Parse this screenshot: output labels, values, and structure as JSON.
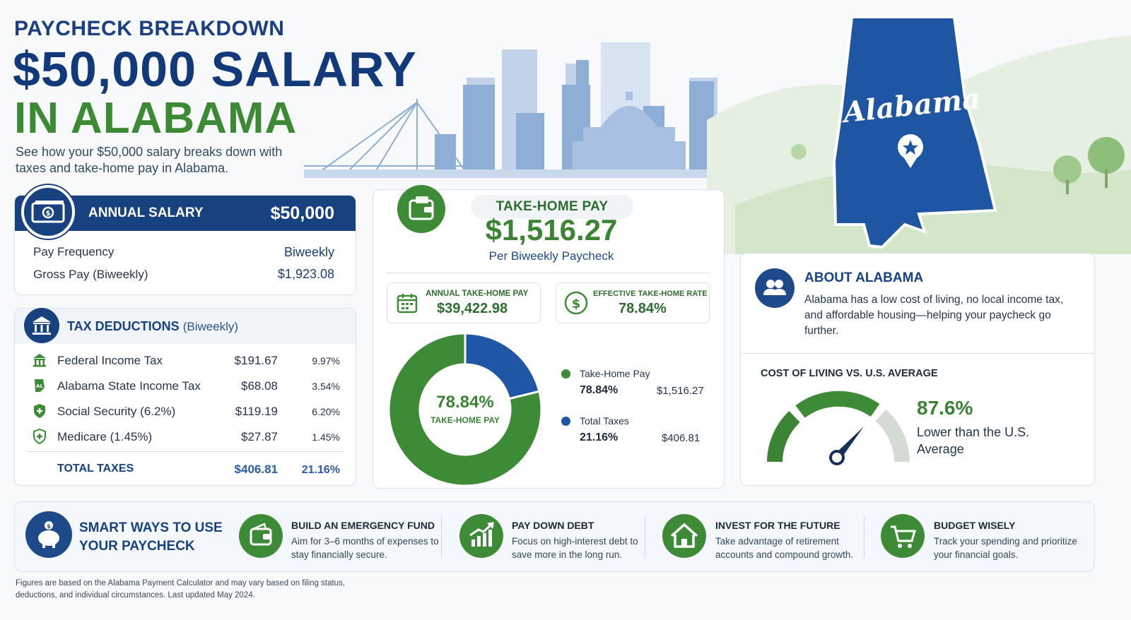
{
  "header": {
    "kicker": "PAYCHECK BREAKDOWN",
    "title_line1": "$50,000 SALARY",
    "title_line2": "IN ALABAMA",
    "subtitle": "See how your $50,000 salary breaks down with taxes and take-home pay in Alabama."
  },
  "state_map": {
    "label": "Alabama"
  },
  "annual_salary": {
    "label": "ANNUAL SALARY",
    "value": "$50,000",
    "rows": [
      {
        "label": "Pay Frequency",
        "value": "Biweekly"
      },
      {
        "label": "Gross Pay (Biweekly)",
        "value": "$1,923.08"
      }
    ]
  },
  "tax_deductions": {
    "title": "TAX DEDUCTIONS",
    "period": "(Biweekly)",
    "items": [
      {
        "name": "Federal Income Tax",
        "amount": "$191.67",
        "percent": "9.97%",
        "icon": "bank-icon"
      },
      {
        "name": "Alabama State Income Tax",
        "amount": "$68.08",
        "percent": "3.54%",
        "icon": "al-badge-icon"
      },
      {
        "name": "Social Security (6.2%)",
        "amount": "$119.19",
        "percent": "6.20%",
        "icon": "shield-icon"
      },
      {
        "name": "Medicare (1.45%)",
        "amount": "$27.87",
        "percent": "1.45%",
        "icon": "medical-shield-icon"
      }
    ],
    "total": {
      "name": "TOTAL TAXES",
      "amount": "$406.81",
      "percent": "21.16%"
    }
  },
  "take_home": {
    "label": "TAKE-HOME PAY",
    "value": "$1,516.27",
    "sub": "Per Biweekly Paycheck",
    "annual_label": "ANNUAL TAKE-HOME PAY",
    "annual_value": "$39,422.98",
    "rate_label": "EFFECTIVE TAKE-HOME RATE",
    "rate_value": "78.84%",
    "donut_center_pct": "78.84%",
    "donut_center_label": "TAKE-HOME PAY",
    "legend": [
      {
        "name": "Take-Home Pay",
        "pct": "78.84%",
        "amount": "$1,516.27",
        "color": "#3e8b37"
      },
      {
        "name": "Total Taxes",
        "pct": "21.16%",
        "amount": "$406.81",
        "color": "#1f57a6"
      }
    ]
  },
  "chart_data": {
    "type": "pie",
    "categories": [
      "Take-Home Pay",
      "Total Taxes"
    ],
    "values": [
      78.84,
      21.16
    ],
    "colors": [
      "#3e8b37",
      "#1f57a6"
    ]
  },
  "about": {
    "title": "ABOUT ALABAMA",
    "text": "Alabama has a low cost of living, no local income tax, and affordable housing—helping your paycheck go further.",
    "col_title": "COST OF LIVING VS. U.S. AVERAGE",
    "col_value": "87.6%",
    "col_sub": "Lower than the U.S. Average"
  },
  "smart_ways": {
    "title": "SMART WAYS TO USE YOUR PAYCHECK",
    "tips": [
      {
        "title": "BUILD AN EMERGENCY FUND",
        "text": "Aim for 3–6 months of expenses to stay financially secure.",
        "icon": "wallet-icon"
      },
      {
        "title": "PAY DOWN DEBT",
        "text": "Focus on high-interest debt to save more in the long run.",
        "icon": "chart-up-icon"
      },
      {
        "title": "INVEST FOR THE FUTURE",
        "text": "Take advantage of retirement accounts and compound growth.",
        "icon": "house-icon"
      },
      {
        "title": "BUDGET WISELY",
        "text": "Track your spending and prioritize your financial goals.",
        "icon": "cart-icon"
      }
    ]
  },
  "footnote": "Figures are based on the Alabama Payment Calculator and may vary based on filing status, deductions, and individual circumstances. Last updated May 2024."
}
